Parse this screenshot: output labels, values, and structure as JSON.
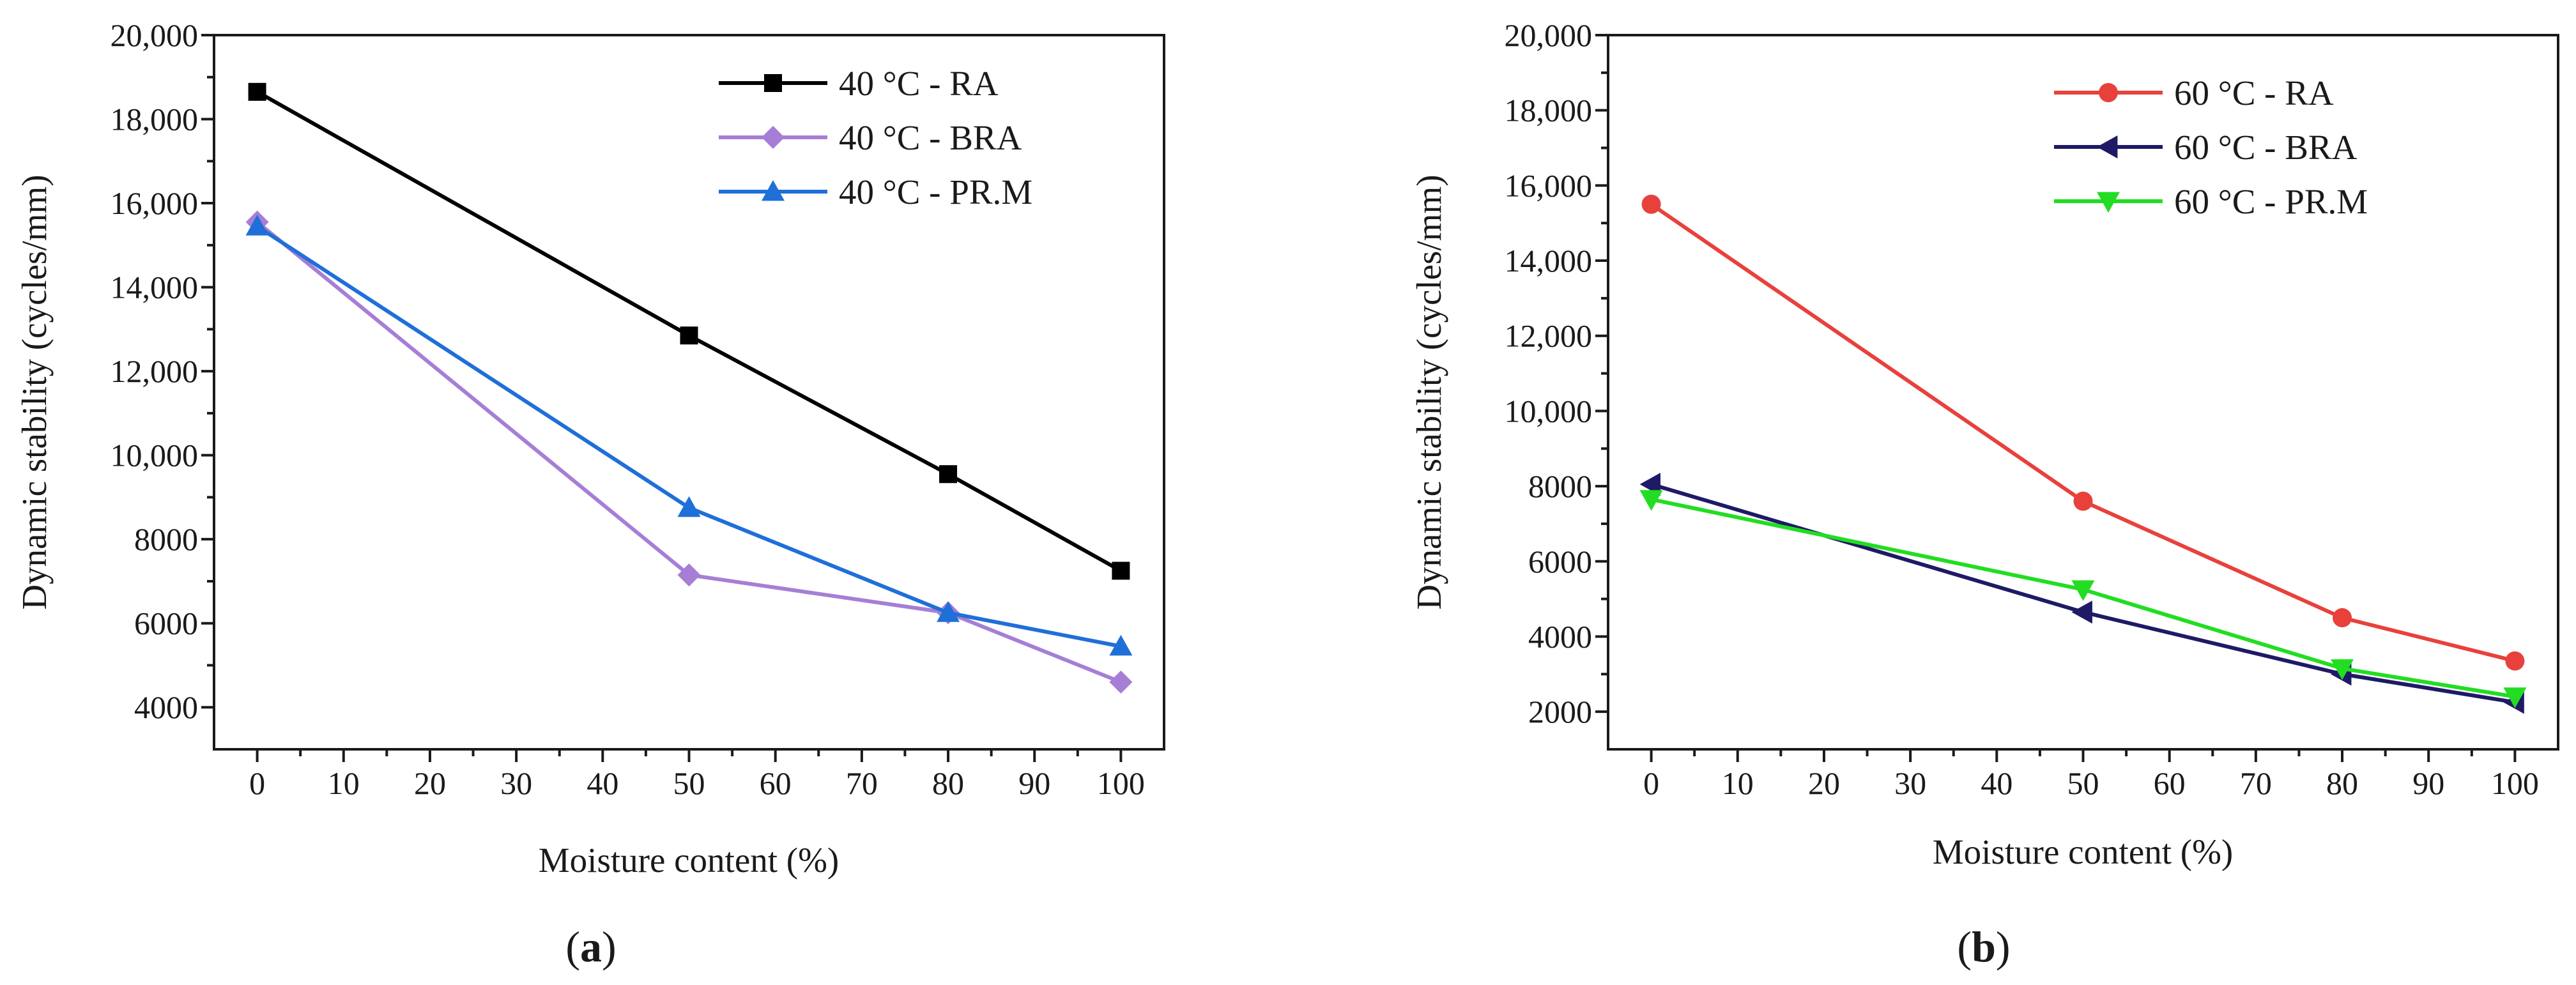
{
  "chart_data": [
    {
      "type": "line",
      "panel_label": "a",
      "xlabel": "Moisture content (%)",
      "ylabel": "Dynamic stability (cycles/mm)",
      "xlim": [
        -5,
        105
      ],
      "ylim": [
        3000,
        20000
      ],
      "xticks": [
        0,
        10,
        20,
        30,
        40,
        50,
        60,
        70,
        80,
        90,
        100
      ],
      "yticks": [
        4000,
        6000,
        8000,
        10000,
        12000,
        14000,
        16000,
        18000,
        20000
      ],
      "ytick_labels": [
        "4000",
        "6000",
        "8000",
        "10,000",
        "12,000",
        "14,000",
        "16,000",
        "18,000",
        "20,000"
      ],
      "legend_position": "top-right",
      "x": [
        0,
        50,
        80,
        100
      ],
      "series": [
        {
          "name": "40 °C - RA",
          "color": "#000000",
          "marker": "square",
          "values": [
            18650,
            12850,
            9550,
            7250
          ]
        },
        {
          "name": "40 °C - BRA",
          "color": "#a67ed6",
          "marker": "diamond",
          "values": [
            15550,
            7150,
            6250,
            4600
          ]
        },
        {
          "name": "40 °C - PR.M",
          "color": "#1f6fd9",
          "marker": "triangle-up",
          "values": [
            15450,
            8750,
            6250,
            5450
          ]
        }
      ]
    },
    {
      "type": "line",
      "panel_label": "b",
      "xlabel": "Moisture content (%)",
      "ylabel": "Dynamic stability (cycles/mm)",
      "xlim": [
        -5,
        105
      ],
      "ylim": [
        1000,
        20000
      ],
      "xticks": [
        0,
        10,
        20,
        30,
        40,
        50,
        60,
        70,
        80,
        90,
        100
      ],
      "yticks": [
        2000,
        4000,
        6000,
        8000,
        10000,
        12000,
        14000,
        16000,
        18000,
        20000
      ],
      "ytick_labels": [
        "2000",
        "4000",
        "6000",
        "8000",
        "10,000",
        "12,000",
        "14,000",
        "16,000",
        "18,000",
        "20,000"
      ],
      "legend_position": "top-right",
      "x": [
        0,
        50,
        80,
        100
      ],
      "series": [
        {
          "name": "60 °C - RA",
          "color": "#e8413c",
          "marker": "circle",
          "values": [
            15500,
            7600,
            4500,
            3350
          ]
        },
        {
          "name": "60 °C - BRA",
          "color": "#1e1a66",
          "marker": "triangle-left",
          "values": [
            8050,
            4650,
            3000,
            2250
          ]
        },
        {
          "name": "60 °C - PR.M",
          "color": "#22dd22",
          "marker": "triangle-down",
          "values": [
            7650,
            5250,
            3150,
            2400
          ]
        }
      ]
    }
  ]
}
